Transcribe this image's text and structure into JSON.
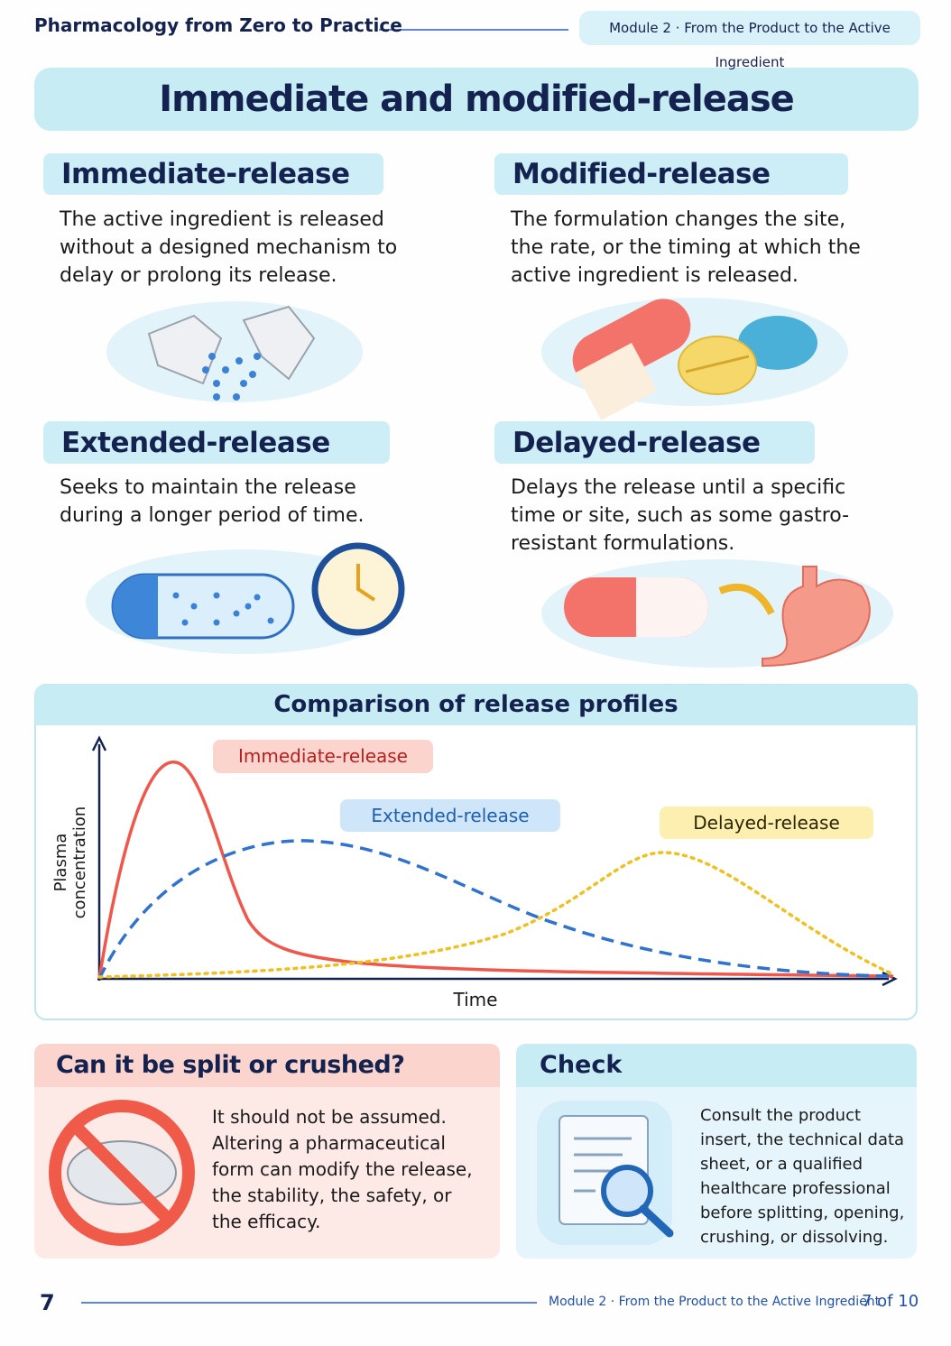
{
  "header": {
    "title": "Pharmacology from Zero to Practice",
    "module": "Module 2 · From the Product to the Active Ingredient"
  },
  "main_title": "Immediate and modified-release",
  "sections": [
    {
      "title": "Immediate-release",
      "text": "The active ingredient is released without a designed mechanism to delay or prolong its release."
    },
    {
      "title": "Modified-release",
      "text": "The formulation changes the site, the rate, or the timing at which the active ingredient is released."
    },
    {
      "title": "Extended-release",
      "text": "Seeks to maintain the release during a longer period of time."
    },
    {
      "title": "Delayed-release",
      "text": "Delays the release until a specific time or site, such as some gastro-resistant formulations."
    }
  ],
  "comparison": {
    "title": "Comparison of release profiles",
    "y_label": "Plasma concentration",
    "x_label": "Time",
    "curves": [
      "Immediate-release",
      "Extended-release",
      "Delayed-release"
    ]
  },
  "split": {
    "title": "Can it be split or crushed?",
    "text": "It should not be assumed. Altering a pharmaceutical form can modify the release, the stability, the safety, or the efficacy."
  },
  "check": {
    "title": "Check",
    "text": "Consult the product insert, the technical data sheet, or a qualified healthcare professional before splitting, opening, crushing, or dissolving."
  },
  "footer": {
    "page": "7",
    "module": "Module 2 · From the Product to the Active Ingredient",
    "page_of": "7 of 10"
  }
}
